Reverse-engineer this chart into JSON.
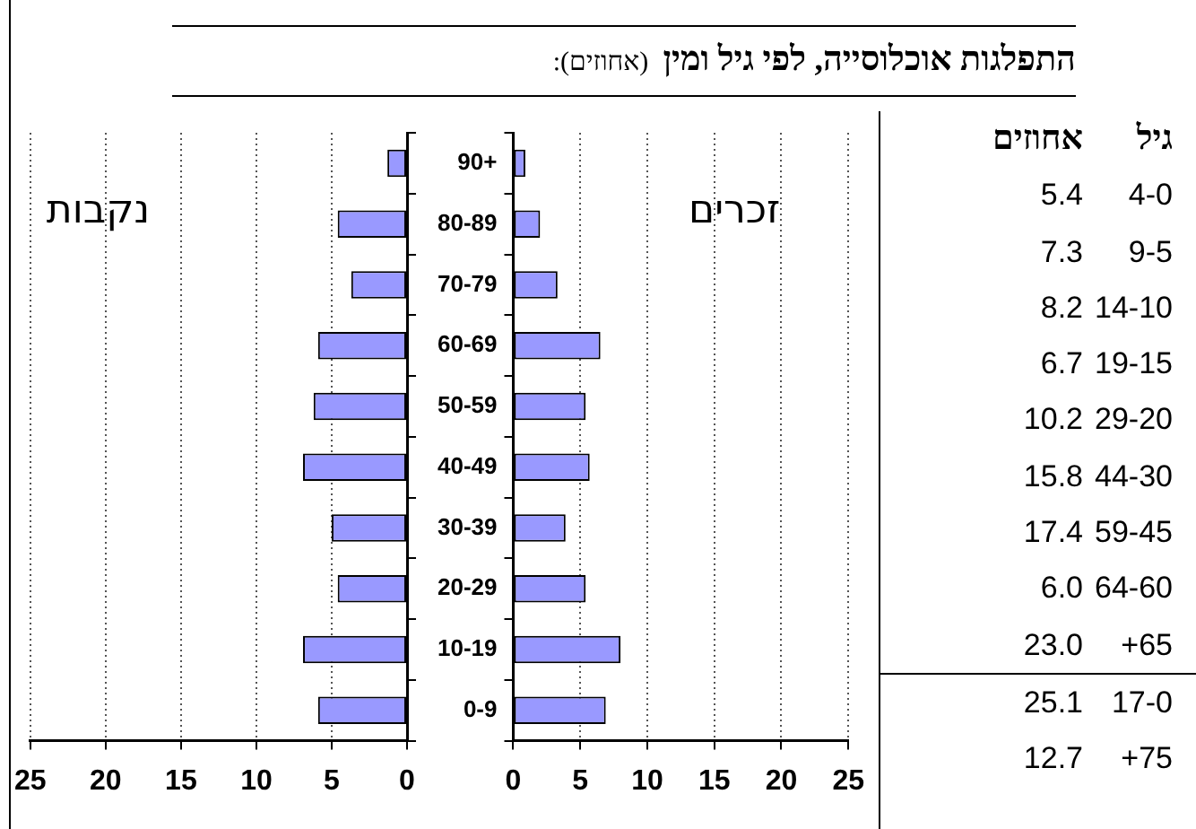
{
  "chart_data": [
    {
      "type": "bar",
      "orientation": "horizontal",
      "categories": [
        null,
        null,
        null,
        null,
        null,
        null,
        null,
        null,
        null,
        null
      ],
      "series": [
        {
          "color": "#9999ff",
          "values": [
            1.3,
            4.6,
            3.7,
            5.9,
            6.2,
            6.9,
            5.0,
            4.6,
            6.9,
            5.9
          ]
        }
      ],
      "xlim": [
        25,
        0
      ],
      "xticks": [
        25,
        20,
        15,
        10,
        5,
        0
      ],
      "grid": "x",
      "legend": false,
      "annotations": [
        "נקבות"
      ]
    },
    {
      "type": "bar",
      "orientation": "horizontal",
      "categories": [
        "90+",
        "80-89",
        "70-79",
        "60-69",
        "50-59",
        "40-49",
        "30-39",
        "20-29",
        "10-19",
        "0-9"
      ],
      "series": [
        {
          "color": "#9999ff",
          "values": [
            0.9,
            2.0,
            3.3,
            6.5,
            5.4,
            5.7,
            3.9,
            5.4,
            8.0,
            6.9
          ]
        }
      ],
      "xlim": [
        0,
        25
      ],
      "xticks": [
        0,
        5,
        10,
        15,
        20,
        25
      ],
      "grid": "x",
      "legend": false,
      "annotations": [
        "זכרים"
      ]
    },
    {
      "type": "other",
      "title": "התפלגות אוכלוסייה, לפי גיל ומין",
      "subtitle": "(אחוזים):",
      "annotations": [
        "גיל",
        "אחוזים",
        "4-0",
        "5.4",
        "9-5",
        "7.3",
        "14-10",
        "8.2",
        "19-15",
        "6.7",
        "29-20",
        "10.2",
        "44-30",
        "15.8",
        "59-45",
        "17.4",
        "64-60",
        "6.0",
        "+65",
        "23.0",
        "17-0",
        "25.1",
        "+75",
        "12.7"
      ]
    }
  ]
}
